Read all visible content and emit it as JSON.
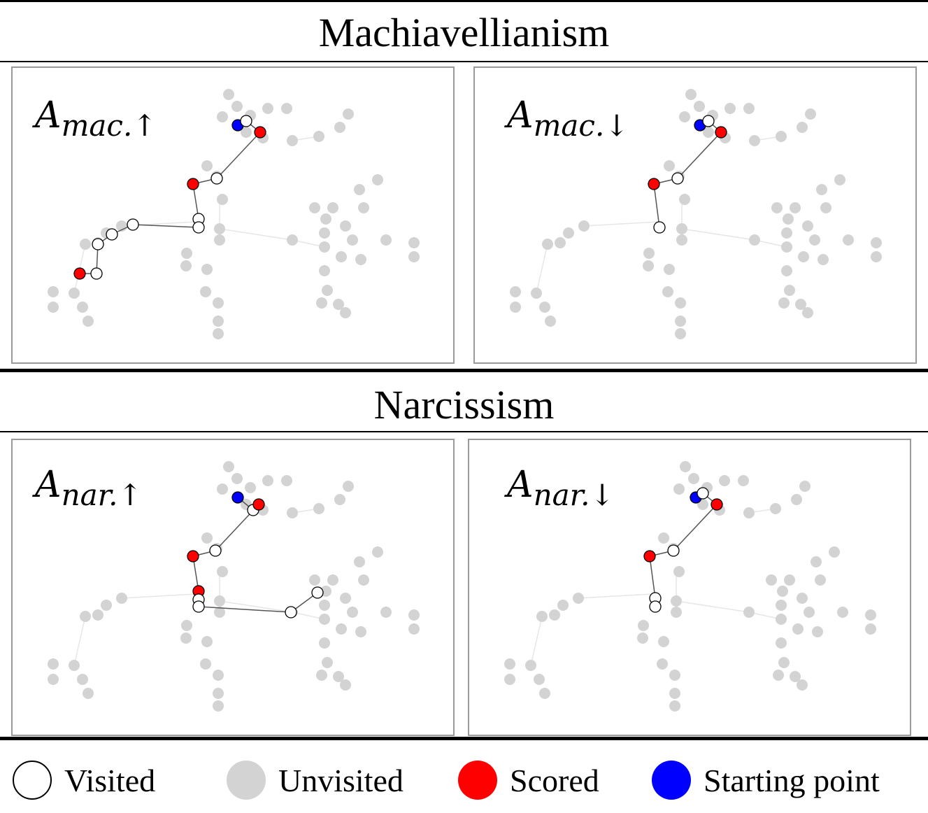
{
  "sections": [
    {
      "title": "Machiavellianism"
    },
    {
      "title": "Narcissism"
    }
  ],
  "panels": [
    {
      "base": "A",
      "sub": "mac.↑"
    },
    {
      "base": "A",
      "sub": "mac.↓"
    },
    {
      "base": "A",
      "sub": "nar.↑"
    },
    {
      "base": "A",
      "sub": "nar.↓"
    }
  ],
  "legend": [
    {
      "label": "Visited",
      "fill": "#ffffff",
      "stroke": "#000000"
    },
    {
      "label": "Unvisited",
      "fill": "#d3d3d3",
      "stroke": "#d3d3d3"
    },
    {
      "label": "Scored",
      "fill": "#ff0000",
      "stroke": "#ff0000"
    },
    {
      "label": "Starting point",
      "fill": "#0000ff",
      "stroke": "#0000ff"
    }
  ],
  "colors": {
    "visited": "#ffffff",
    "unvisited": "#d3d3d3",
    "scored": "#ff0000",
    "start": "#0000ff",
    "edge": "#555555",
    "faint_edge": "#e6e6e6"
  }
}
